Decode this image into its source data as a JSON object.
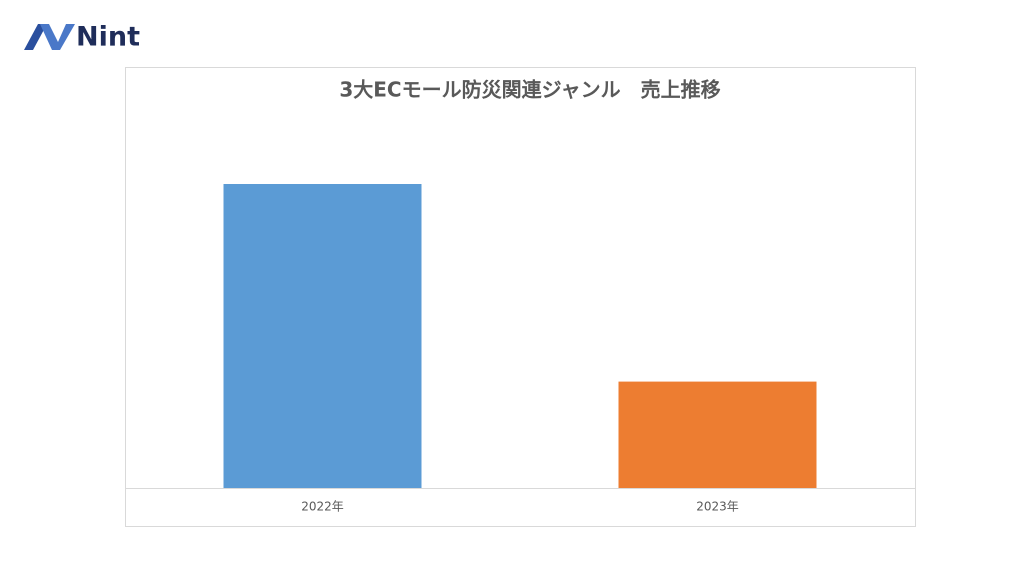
{
  "logo": "Nint",
  "chart_data": {
    "type": "bar",
    "title": "3大ECモール防災関連ジャンル　売上推移",
    "categories": [
      "2022年",
      "2023年"
    ],
    "values": [
      100,
      35
    ],
    "colors": [
      "#5b9bd5",
      "#ed7d31"
    ],
    "ylim": [
      0,
      100
    ],
    "grid": false
  }
}
